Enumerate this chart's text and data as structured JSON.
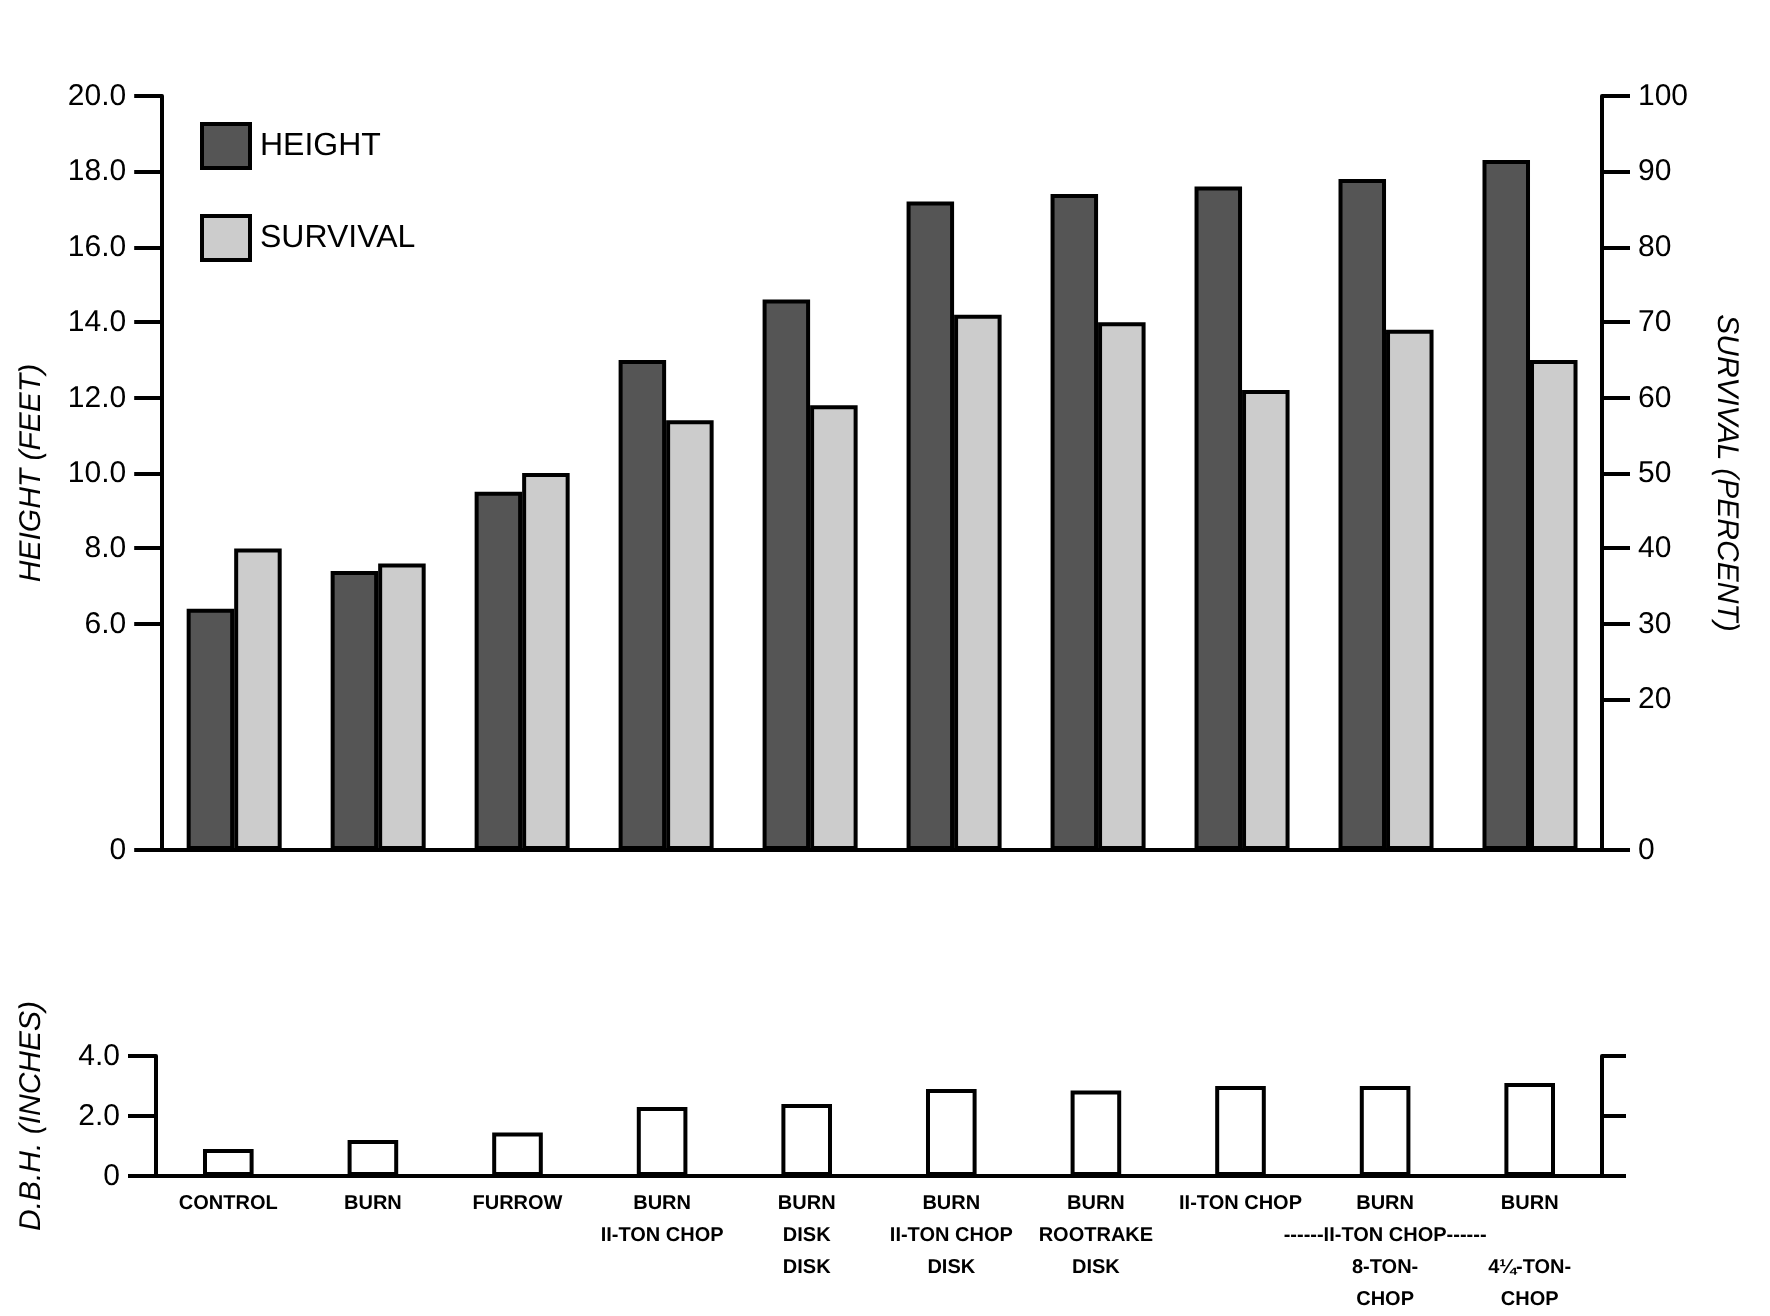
{
  "chart_data": [
    {
      "type": "bar",
      "tick_labels": "y",
      "legend": "top left",
      "ylabel": "HEIGHT (FEET)",
      "y2label": "SURVIVAL (PERCENT)",
      "categories": [
        null,
        null,
        null,
        null,
        null,
        null,
        null,
        null,
        null,
        null
      ],
      "ylim": [
        0,
        20
      ],
      "yticks": [
        0,
        {
          "value": 6,
          "label": "6.0"
        },
        {
          "value": 8,
          "label": "8.0"
        },
        {
          "value": 10,
          "label": "10.0"
        },
        {
          "value": 12,
          "label": "12.0"
        },
        {
          "value": 14,
          "label": "14.0"
        },
        {
          "value": 16,
          "label": "16.0"
        },
        {
          "value": 18,
          "label": "18.0"
        },
        {
          "value": 20,
          "label": "20.0"
        }
      ],
      "y2lim": [
        0,
        100
      ],
      "y2ticks": [
        0,
        20,
        30,
        40,
        50,
        60,
        70,
        80,
        90,
        100
      ],
      "series": [
        {
          "name": "HEIGHT",
          "color": "#555555",
          "values": [
            6.4,
            7.4,
            9.5,
            13.0,
            14.6,
            17.2,
            17.4,
            17.6,
            17.8,
            18.3
          ]
        },
        {
          "name": "SURVIVAL",
          "color": "#cccccc",
          "axis": "y2",
          "values": [
            40,
            38,
            50,
            57,
            59,
            71,
            70,
            61,
            69,
            65
          ]
        }
      ]
    },
    {
      "type": "bar",
      "ylabel": "D.B.H. (INCHES)",
      "categories": [
        "CONTROL",
        "BURN",
        "FURROW",
        "BURN\nII-TON CHOP",
        "BURN\nDISK\nDISK",
        "BURN\nII-TON CHOP\nDISK",
        "BURN\nROOTRAKE\nDISK",
        "II-TON CHOP",
        "BURN\n\n8-TON-\nCHOP",
        "BURN\n\n4¼-TON-\nCHOP"
      ],
      "ylim": [
        0,
        4
      ],
      "yticks": [
        0,
        {
          "value": 2,
          "label": "2.0"
        },
        {
          "value": 4,
          "label": "4.0"
        }
      ],
      "color": "#ffffff",
      "values": [
        0.9,
        1.2,
        1.45,
        2.3,
        2.4,
        2.9,
        2.85,
        3.0,
        3.0,
        3.1
      ],
      "annotations": [
        "------II-TON CHOP------"
      ]
    }
  ]
}
